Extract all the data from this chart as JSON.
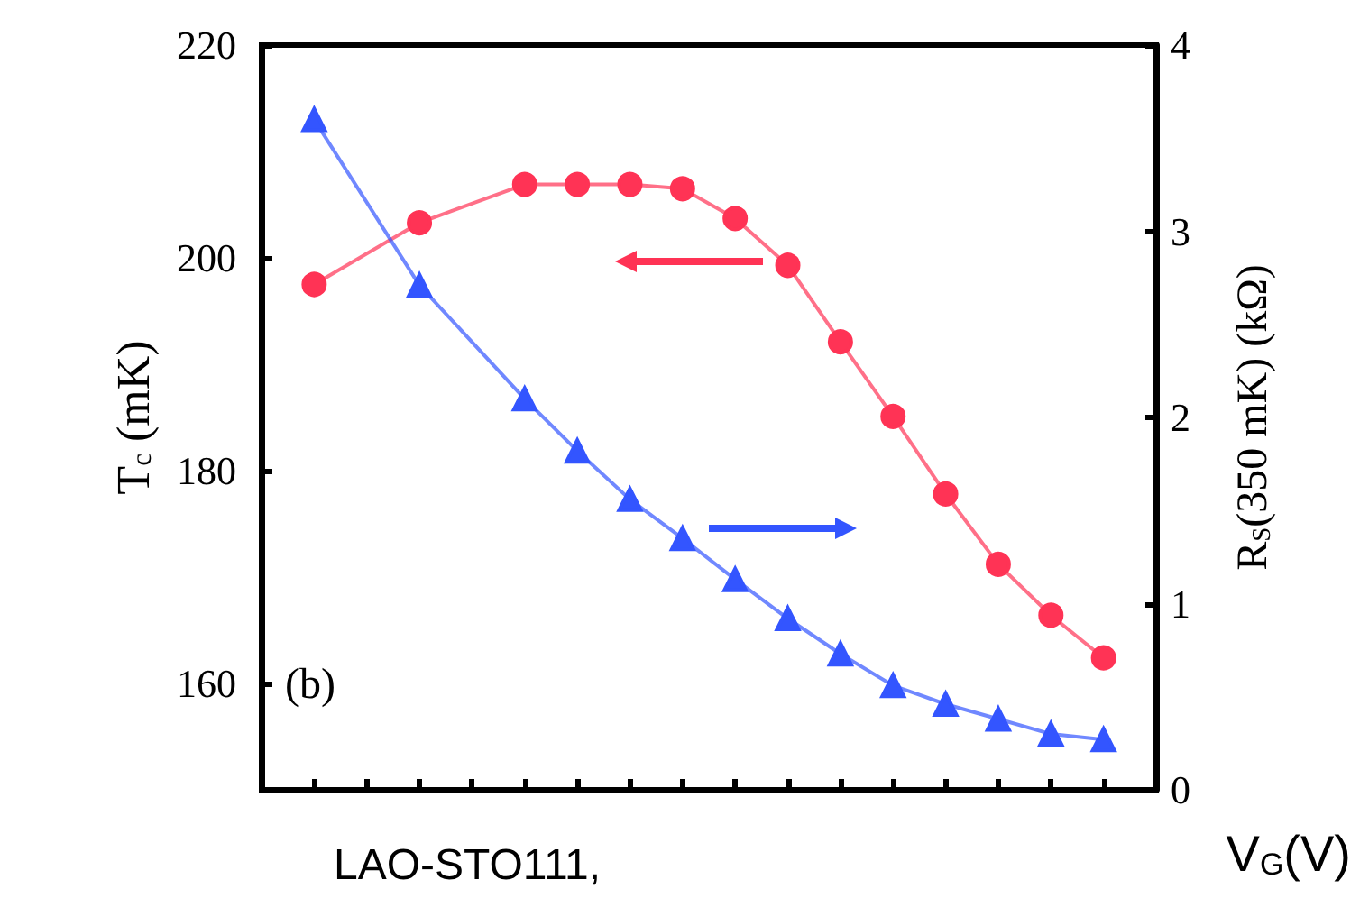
{
  "chart_data": {
    "type": "line",
    "xlabel": "V$_{G}$(V)",
    "ylabel": "T$_{c}$ (mK)",
    "y2label": "R$_{S}$(350 mK) (kΩ)",
    "annotations": [
      "(b)",
      "LAO-STO111,"
    ],
    "categories": [
      null,
      null,
      null,
      null,
      null,
      null,
      null,
      null,
      null,
      null,
      null,
      null,
      null,
      null,
      null,
      null,
      null,
      null
    ],
    "ylim": [
      150,
      220
    ],
    "yticks": [
      160,
      180,
      200,
      220
    ],
    "y2lim": [
      0,
      4
    ],
    "y2ticks": [
      0,
      1,
      2,
      3,
      4
    ],
    "tick_labels": "y",
    "series": [
      {
        "color": "#ff3355",
        "marker": "circle",
        "values": [
          null,
          197.5,
          null,
          203.3,
          null,
          206.9,
          206.9,
          206.9,
          206.5,
          203.7,
          199.3,
          192.1,
          185.1,
          177.8,
          171.2,
          166.4,
          162.4,
          null
        ]
      },
      {
        "color": "#3355ff",
        "marker": "triangle",
        "axis": "y2",
        "values": [
          null,
          3.6,
          null,
          2.71,
          null,
          2.1,
          1.82,
          1.56,
          1.35,
          1.13,
          0.92,
          0.73,
          0.56,
          0.46,
          0.38,
          0.3,
          0.27,
          null
        ]
      }
    ]
  }
}
